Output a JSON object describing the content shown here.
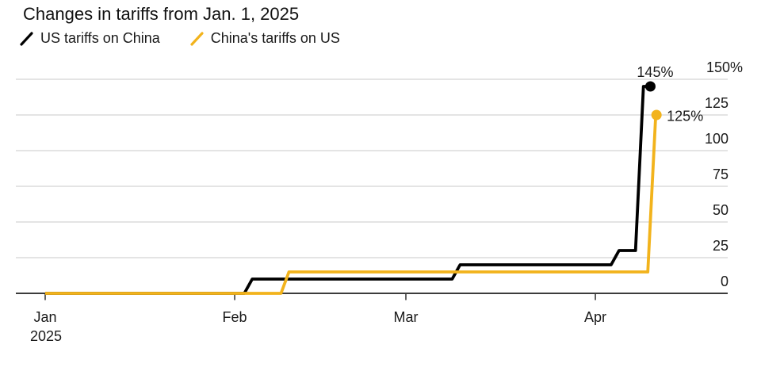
{
  "title": "Changes in tariffs from Jan. 1, 2025",
  "legend": {
    "items": [
      {
        "label": "US tariffs on China",
        "color": "#000000"
      },
      {
        "label": "China's tariffs on US",
        "color": "#F2B31C"
      }
    ]
  },
  "colors": {
    "grid": "#DBDBDB",
    "axis": "#3C3C3C",
    "text": "#1A1A1A",
    "background": "#FFFFFF"
  },
  "chart_data": {
    "type": "line",
    "variant": "step",
    "title": "Changes in tariffs from Jan. 1, 2025",
    "unit_suffix": "%",
    "legend_position": "top-left",
    "x_axis": {
      "start_date": "Jan 1, 2025",
      "ticks": [
        {
          "label": "Jan",
          "sublabel": "2025",
          "day": 0
        },
        {
          "label": "Feb",
          "day": 31
        },
        {
          "label": "Mar",
          "day": 59
        },
        {
          "label": "Apr",
          "day": 90
        }
      ]
    },
    "y_axis": {
      "side": "right",
      "grid": true,
      "ylim": [
        0,
        150
      ],
      "ticks": [
        {
          "value": 0,
          "label": "0"
        },
        {
          "value": 25,
          "label": "25"
        },
        {
          "value": 50,
          "label": "50"
        },
        {
          "value": 75,
          "label": "75"
        },
        {
          "value": 100,
          "label": "100"
        },
        {
          "value": 125,
          "label": "125"
        },
        {
          "value": 150,
          "label": "150%"
        }
      ]
    },
    "series": [
      {
        "name": "US tariffs on China",
        "color": "#000000",
        "end_label": "145%",
        "end_label_position": "above",
        "points": [
          {
            "day": 0,
            "date": "Jan 1",
            "value": 0
          },
          {
            "day": 34,
            "date": "Feb 4",
            "value": 10
          },
          {
            "day": 68,
            "date": "Mar 10",
            "value": 20
          },
          {
            "day": 94,
            "date": "Apr 5",
            "value": 30
          },
          {
            "day": 98,
            "date": "Apr 9",
            "value": 145
          },
          {
            "day": 99,
            "date": "Apr 10",
            "value": 145
          }
        ]
      },
      {
        "name": "China's tariffs on US",
        "color": "#F2B31C",
        "end_label": "125%",
        "end_label_position": "right",
        "points": [
          {
            "day": 0,
            "date": "Jan 1",
            "value": 0
          },
          {
            "day": 40,
            "date": "Feb 10",
            "value": 15
          },
          {
            "day": 100,
            "date": "Apr 11",
            "value": 125
          }
        ]
      }
    ]
  }
}
